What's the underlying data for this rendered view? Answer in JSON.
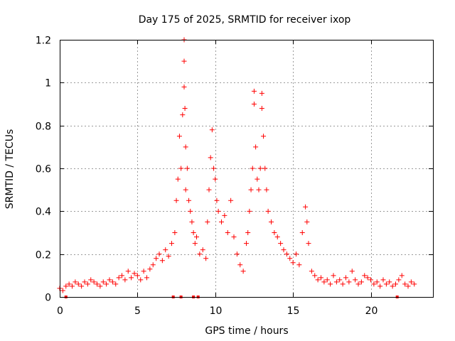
{
  "chart_data": {
    "type": "scatter",
    "title": "Day 175 of 2025, SRMTID for receiver ixop",
    "xlabel": "GPS time / hours",
    "ylabel": "SRMTID / TECUs",
    "xlim": [
      0,
      24
    ],
    "ylim": [
      0,
      1.2
    ],
    "x_ticks": [
      0,
      5,
      10,
      15,
      20
    ],
    "x_tick_labels": [
      "0",
      "5",
      "10",
      "15",
      "20"
    ],
    "y_ticks": [
      0,
      0.2,
      0.4,
      0.6,
      0.8,
      1,
      1.2
    ],
    "y_tick_labels": [
      "0",
      "0.2",
      "0.4",
      "0.6",
      "0.8",
      "1",
      "1.2"
    ],
    "grid": true,
    "marker": "+",
    "color": "#ff0000",
    "baseline_marks_x": [
      0.4,
      7.3,
      7.8,
      8.6,
      8.9,
      21.7
    ],
    "series": [
      {
        "name": "SRMTID",
        "x": [
          0.0,
          0.2,
          0.4,
          0.6,
          0.8,
          1.0,
          1.2,
          1.4,
          1.6,
          1.8,
          2.0,
          2.2,
          2.4,
          2.6,
          2.8,
          3.0,
          3.2,
          3.4,
          3.6,
          3.8,
          4.0,
          4.2,
          4.4,
          4.6,
          4.8,
          5.0,
          5.2,
          5.4,
          5.6,
          5.8,
          6.0,
          6.2,
          6.4,
          6.6,
          6.8,
          7.0,
          7.2,
          7.4,
          7.5,
          7.6,
          7.7,
          7.8,
          7.9,
          8.0,
          8.0,
          8.0,
          8.05,
          8.1,
          8.1,
          8.2,
          8.3,
          8.4,
          8.5,
          8.6,
          8.7,
          8.8,
          9.0,
          9.2,
          9.4,
          9.5,
          9.6,
          9.7,
          9.8,
          9.9,
          10.0,
          10.1,
          10.2,
          10.4,
          10.6,
          10.8,
          11.0,
          11.2,
          11.4,
          11.6,
          11.8,
          12.0,
          12.1,
          12.2,
          12.3,
          12.4,
          12.5,
          12.5,
          12.6,
          12.7,
          12.8,
          12.9,
          13.0,
          13.0,
          13.1,
          13.2,
          13.3,
          13.4,
          13.6,
          13.8,
          14.0,
          14.2,
          14.4,
          14.6,
          14.8,
          15.0,
          15.2,
          15.4,
          15.6,
          15.8,
          15.9,
          16.0,
          16.2,
          16.4,
          16.6,
          16.8,
          17.0,
          17.2,
          17.4,
          17.6,
          17.8,
          18.0,
          18.2,
          18.4,
          18.6,
          18.8,
          19.0,
          19.2,
          19.4,
          19.6,
          19.8,
          20.0,
          20.2,
          20.4,
          20.6,
          20.8,
          21.0,
          21.2,
          21.4,
          21.6,
          21.8,
          22.0,
          22.2,
          22.4,
          22.6,
          22.8
        ],
        "y": [
          0.04,
          0.03,
          0.05,
          0.06,
          0.05,
          0.07,
          0.06,
          0.05,
          0.07,
          0.06,
          0.08,
          0.07,
          0.06,
          0.05,
          0.07,
          0.06,
          0.08,
          0.07,
          0.06,
          0.09,
          0.1,
          0.08,
          0.12,
          0.09,
          0.11,
          0.1,
          0.08,
          0.12,
          0.09,
          0.13,
          0.15,
          0.18,
          0.2,
          0.17,
          0.22,
          0.19,
          0.25,
          0.3,
          0.45,
          0.55,
          0.75,
          0.6,
          0.85,
          1.2,
          1.1,
          0.98,
          0.88,
          0.7,
          0.5,
          0.6,
          0.45,
          0.4,
          0.35,
          0.3,
          0.25,
          0.28,
          0.2,
          0.22,
          0.18,
          0.35,
          0.5,
          0.65,
          0.78,
          0.6,
          0.55,
          0.45,
          0.4,
          0.35,
          0.38,
          0.3,
          0.45,
          0.28,
          0.2,
          0.15,
          0.12,
          0.25,
          0.3,
          0.4,
          0.5,
          0.6,
          0.96,
          0.9,
          0.7,
          0.55,
          0.5,
          0.6,
          0.95,
          0.88,
          0.75,
          0.6,
          0.5,
          0.4,
          0.35,
          0.3,
          0.28,
          0.25,
          0.22,
          0.2,
          0.18,
          0.16,
          0.2,
          0.15,
          0.3,
          0.42,
          0.35,
          0.25,
          0.12,
          0.1,
          0.08,
          0.09,
          0.07,
          0.08,
          0.06,
          0.1,
          0.07,
          0.08,
          0.06,
          0.09,
          0.07,
          0.12,
          0.08,
          0.06,
          0.07,
          0.1,
          0.09,
          0.08,
          0.06,
          0.07,
          0.05,
          0.08,
          0.06,
          0.07,
          0.05,
          0.06,
          0.08,
          0.1,
          0.06,
          0.05,
          0.07,
          0.06
        ]
      }
    ]
  }
}
